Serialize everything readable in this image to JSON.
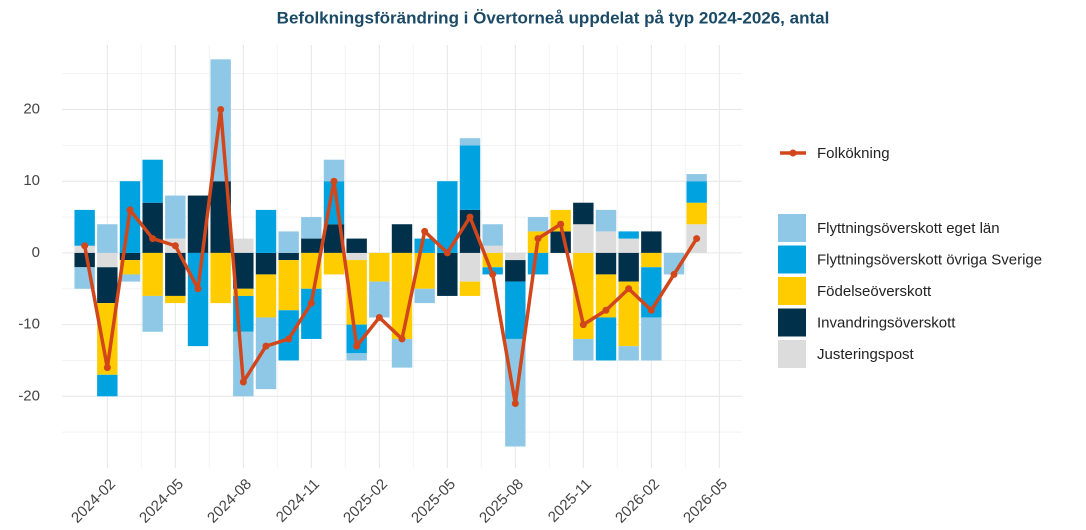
{
  "chart_data": {
    "type": "bar",
    "title": "Befolkningsförändring i Övertorneå uppdelat på typ 2024-2026, antal",
    "x": [
      "2024-01",
      "2024-02",
      "2024-03",
      "2024-04",
      "2024-05",
      "2024-06",
      "2024-07",
      "2024-08",
      "2024-09",
      "2024-10",
      "2024-11",
      "2024-12",
      "2025-01",
      "2025-02",
      "2025-03",
      "2025-04",
      "2025-05",
      "2025-06",
      "2025-07",
      "2025-08",
      "2025-09",
      "2025-10",
      "2025-11",
      "2025-12",
      "2026-01",
      "2026-02",
      "2026-03",
      "2026-04"
    ],
    "xlim": [
      "2023-12",
      "2026-06"
    ],
    "xticks": [
      "2024-02",
      "2024-05",
      "2024-08",
      "2024-11",
      "2025-02",
      "2025-05",
      "2025-08",
      "2025-11",
      "2026-02",
      "2026-05"
    ],
    "ylim": [
      -30,
      29
    ],
    "yticks": [
      -20,
      -10,
      0,
      10,
      20
    ],
    "grid": true,
    "series": [
      {
        "name": "Flyttningsöverskott eget län",
        "color": "#8fc8e6",
        "values": [
          -3,
          4,
          -1,
          -5,
          6,
          0,
          17,
          -9,
          -10,
          3,
          3,
          3,
          -1,
          -5,
          -4,
          -2,
          0,
          1,
          3,
          -15,
          2,
          0,
          -3,
          3,
          -2,
          -6,
          -3,
          1
        ]
      },
      {
        "name": "Flyttningsöverskott övriga Sverige",
        "color": "#00a3e0",
        "values": [
          5,
          -3,
          10,
          6,
          0,
          -13,
          0,
          -5,
          6,
          -7,
          -7,
          6,
          -4,
          0,
          0,
          2,
          10,
          9,
          -1,
          -8,
          -3,
          0,
          0,
          -6,
          1,
          -7,
          0,
          3
        ]
      },
      {
        "name": "Födelseöverskott",
        "color": "#ffcc00",
        "values": [
          0,
          -10,
          -2,
          -6,
          -1,
          0,
          -7,
          -1,
          -6,
          -7,
          -5,
          -3,
          -9,
          -4,
          -12,
          -5,
          0,
          -2,
          -2,
          0,
          3,
          3,
          -12,
          -6,
          -9,
          -2,
          0,
          3
        ]
      },
      {
        "name": "Invandringsöverskott",
        "color": "#00304a",
        "values": [
          -2,
          -5,
          -1,
          7,
          -6,
          8,
          10,
          -5,
          -3,
          -1,
          2,
          4,
          2,
          0,
          4,
          0,
          -6,
          6,
          0,
          -3,
          0,
          3,
          3,
          -3,
          -4,
          3,
          0,
          0
        ]
      },
      {
        "name": "Justeringspost",
        "color": "#dcdcdc",
        "values": [
          1,
          -2,
          0,
          0,
          2,
          0,
          0,
          2,
          0,
          0,
          0,
          0,
          -1,
          0,
          0,
          0,
          0,
          -4,
          1,
          -1,
          0,
          0,
          4,
          3,
          2,
          0,
          0,
          4
        ]
      }
    ],
    "line": {
      "name": "Folkökning",
      "color": "#d2461c",
      "values": [
        1,
        -16,
        6,
        2,
        1,
        -5,
        20,
        -18,
        -13,
        -12,
        -7,
        10,
        -13,
        -9,
        -12,
        3,
        0,
        5,
        -3,
        -21,
        2,
        4,
        -10,
        -8,
        -5,
        -8,
        -3,
        2
      ]
    }
  }
}
